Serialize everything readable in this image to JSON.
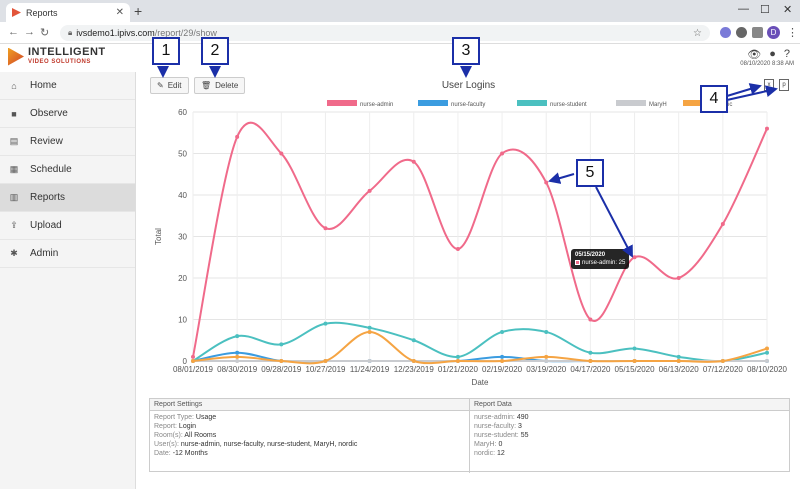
{
  "browser": {
    "tab_title": "Reports",
    "tab_close": "✕",
    "new_tab": "+",
    "url_host": "ivsdemo1.ipivs.com",
    "url_path": "/report/29/show",
    "profile_initial": "D"
  },
  "app": {
    "brand_line1": "INTELLIGENT",
    "brand_line2": "VIDEO SOLUTIONS",
    "datetime": "08/10/2020 8:38 AM"
  },
  "sidebar": {
    "items": [
      {
        "label": "Home",
        "icon": "home-icon",
        "glyph": "⌂"
      },
      {
        "label": "Observe",
        "icon": "camera-icon",
        "glyph": "■"
      },
      {
        "label": "Review",
        "icon": "film-icon",
        "glyph": "▤"
      },
      {
        "label": "Schedule",
        "icon": "calendar-icon",
        "glyph": "▦"
      },
      {
        "label": "Reports",
        "icon": "bar-chart-icon",
        "glyph": "▥"
      },
      {
        "label": "Upload",
        "icon": "upload-icon",
        "glyph": "⇪"
      },
      {
        "label": "Admin",
        "icon": "gear-icon",
        "glyph": "✱"
      }
    ]
  },
  "toolbar": {
    "edit_label": "Edit",
    "delete_label": "Delete"
  },
  "callouts": [
    "1",
    "2",
    "3",
    "4",
    "5"
  ],
  "tooltip": {
    "date": "05/15/2020",
    "text": "nurse-admin: 25"
  },
  "chart_data": {
    "type": "line",
    "title": "User Logins",
    "xlabel": "Date",
    "ylabel": "Total",
    "ylim": [
      0,
      60
    ],
    "yticks": [
      0,
      10,
      20,
      30,
      40,
      50,
      60
    ],
    "grid": true,
    "legend_position": "top",
    "x": [
      "08/01/2019",
      "08/30/2019",
      "09/28/2019",
      "10/27/2019",
      "11/24/2019",
      "12/23/2019",
      "01/21/2020",
      "02/19/2020",
      "03/19/2020",
      "04/17/2020",
      "05/15/2020",
      "06/13/2020",
      "07/12/2020",
      "08/10/2020"
    ],
    "series": [
      {
        "name": "nurse-admin",
        "color": "#f06a8a",
        "values": [
          1,
          54,
          50,
          32,
          41,
          48,
          27,
          50,
          43,
          10,
          25,
          20,
          33,
          56
        ]
      },
      {
        "name": "nurse-faculty",
        "color": "#3b9ce0",
        "values": [
          0,
          2,
          0,
          0,
          0,
          0,
          0,
          1,
          0,
          0,
          0,
          0,
          0,
          0
        ]
      },
      {
        "name": "nurse-student",
        "color": "#4bc0c0",
        "values": [
          0,
          6,
          4,
          9,
          8,
          5,
          1,
          7,
          7,
          2,
          3,
          1,
          0,
          2
        ]
      },
      {
        "name": "MaryH",
        "color": "#c9cbcf",
        "values": [
          0,
          0,
          0,
          0,
          0,
          0,
          0,
          0,
          0,
          0,
          0,
          0,
          0,
          0
        ]
      },
      {
        "name": "nordic",
        "color": "#f5a443",
        "values": [
          0,
          1,
          0,
          0,
          7,
          0,
          0,
          0,
          1,
          0,
          0,
          0,
          0,
          3
        ]
      }
    ]
  },
  "report_settings": {
    "header": "Report Settings",
    "rows": [
      {
        "key": "Report Type:",
        "value": "Usage"
      },
      {
        "key": "Report:",
        "value": "Login"
      },
      {
        "key": "Room(s):",
        "value": "All Rooms"
      },
      {
        "key": "User(s):",
        "value": "nurse-admin, nurse-faculty, nurse-student, MaryH, nordic"
      },
      {
        "key": "Date:",
        "value": "-12 Months"
      }
    ]
  },
  "report_data": {
    "header": "Report Data",
    "rows": [
      {
        "key": "nurse-admin:",
        "value": "490"
      },
      {
        "key": "nurse-faculty:",
        "value": "3"
      },
      {
        "key": "nurse-student:",
        "value": "55"
      },
      {
        "key": "MaryH:",
        "value": "0"
      },
      {
        "key": "nordic:",
        "value": "12"
      }
    ]
  }
}
